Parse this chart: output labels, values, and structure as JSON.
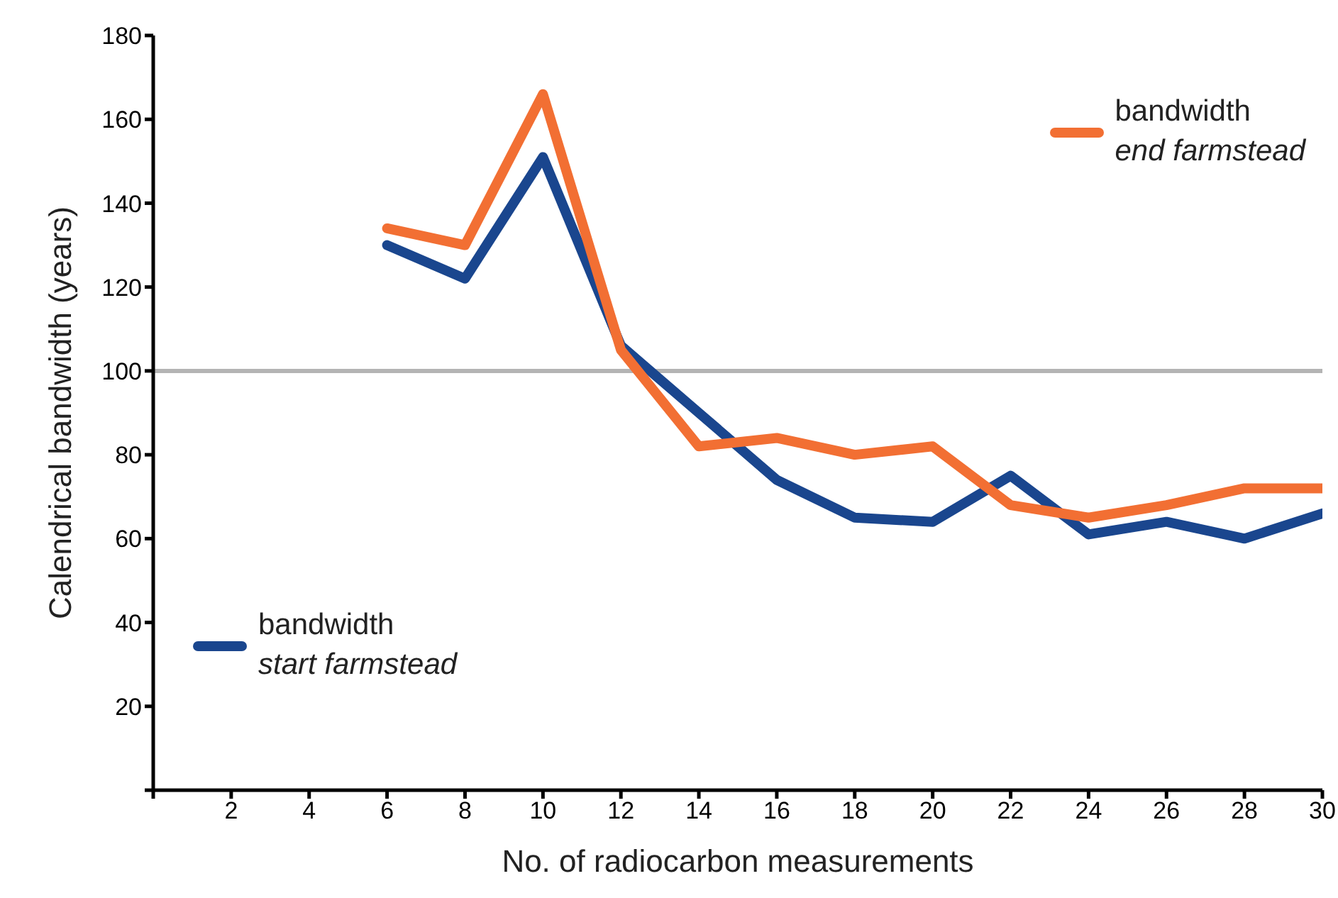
{
  "chart_data": {
    "type": "line",
    "xlabel": "No. of radiocarbon measurements",
    "ylabel": "Calendrical bandwidth (years)",
    "xlim": [
      0,
      30
    ],
    "xticks": [
      {
        "value": 0,
        "label": null
      },
      2,
      4,
      6,
      8,
      10,
      12,
      14,
      16,
      18,
      20,
      22,
      24,
      26,
      28,
      30
    ],
    "ylim": [
      0,
      180
    ],
    "yticks": [
      {
        "value": 0,
        "label": null
      },
      20,
      40,
      60,
      80,
      100,
      120,
      140,
      160,
      180
    ],
    "grid": false,
    "legend": "top right",
    "marker": "none",
    "line_style": "solid",
    "ref_lines": [
      {
        "axis": "y",
        "value": 100,
        "color": "#b4b4b4"
      }
    ],
    "series": [
      {
        "name": "bandwidth\nstart farmstead",
        "color": "#1a468e",
        "x": [
          6,
          8,
          10,
          12,
          14,
          16,
          18,
          20,
          22,
          24,
          26,
          28,
          30
        ],
        "values": [
          130,
          122,
          151,
          106,
          90,
          74,
          65,
          64,
          75,
          61,
          64,
          60,
          66
        ]
      },
      {
        "name": "bandwidth\nend farmstead",
        "color": "#f26f33",
        "x": [
          6,
          8,
          10,
          12,
          14,
          16,
          18,
          20,
          22,
          24,
          26,
          28,
          30
        ],
        "values": [
          134,
          130,
          166,
          105,
          82,
          84,
          80,
          82,
          68,
          65,
          68,
          72,
          72
        ]
      }
    ]
  }
}
